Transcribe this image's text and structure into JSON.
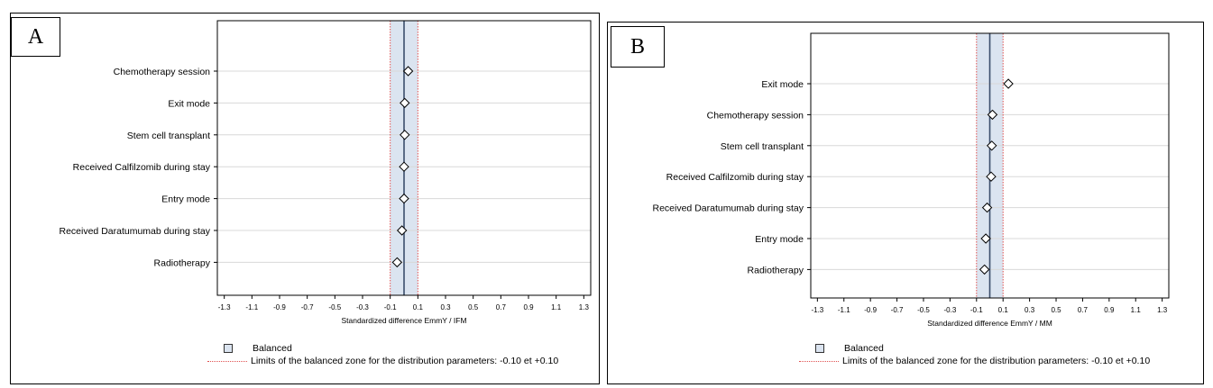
{
  "panels": {
    "a": {
      "letter": "A"
    },
    "b": {
      "letter": "B"
    }
  },
  "legend": {
    "balanced_label": "Balanced",
    "limits_label": "Limits of the balanced zone for the distribution parameters: -0.10 et +0.10"
  },
  "colors": {
    "balanced_zone": "#dbe4f0",
    "zone_border": "#8aa0c0",
    "limit_line": "#e05050",
    "reference_line": "#3b4e6b",
    "marker": "#000000",
    "gridline": "#d8d8d8"
  },
  "chart_data": [
    {
      "type": "scatter",
      "panel": "A",
      "xlabel": "Standardized difference EmmY / IFM",
      "xlim": [
        -1.35,
        1.35
      ],
      "xticks": [
        "-1.3",
        "-1.1",
        "-0.9",
        "-0.7",
        "-0.5",
        "-0.3",
        "-0.1",
        "0.1",
        "0.3",
        "0.5",
        "0.7",
        "0.9",
        "1.1",
        "1.3"
      ],
      "balanced_zone": [
        -0.1,
        0.1
      ],
      "reference_line": 0,
      "grid": true,
      "legend_position": "bottom-left",
      "categories": [
        "Chemotherapy session",
        "Exit mode",
        "Stem cell transplant",
        "Received Calfilzomib during stay",
        "Entry mode",
        "Received Daratumumab during stay",
        "Radiotherapy"
      ],
      "values": [
        0.03,
        0.005,
        0.005,
        0.0,
        0.0,
        -0.015,
        -0.05
      ]
    },
    {
      "type": "scatter",
      "panel": "B",
      "xlabel": "Standardized difference EmmY / MM",
      "xlim": [
        -1.35,
        1.35
      ],
      "xticks": [
        "-1.3",
        "-1.1",
        "-0.9",
        "-0.7",
        "-0.5",
        "-0.3",
        "-0.1",
        "0.1",
        "0.3",
        "0.5",
        "0.7",
        "0.9",
        "1.1",
        "1.3"
      ],
      "balanced_zone": [
        -0.1,
        0.1
      ],
      "reference_line": 0,
      "grid": true,
      "legend_position": "bottom-left",
      "categories": [
        "Exit mode",
        "Chemotherapy session",
        "Stem cell transplant",
        "Received Calfilzomib during stay",
        "Received Daratumumab during stay",
        "Entry mode",
        "Radiotherapy"
      ],
      "values": [
        0.14,
        0.02,
        0.015,
        0.01,
        -0.02,
        -0.03,
        -0.04
      ]
    }
  ]
}
